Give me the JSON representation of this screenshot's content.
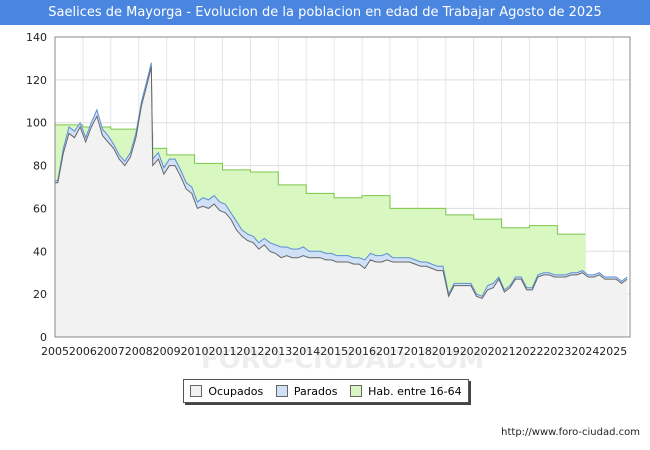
{
  "title": "Saelices de Mayorga - Evolucion de la poblacion en edad de Trabajar Agosto de 2025",
  "source": "http://www.foro-ciudad.com",
  "watermark": "FORO-CIUDAD.COM",
  "colors": {
    "title_bg": "#4a86e0",
    "ocupados_fill": "#f2f2f2",
    "ocupados_line": "#666666",
    "parados_fill": "#cfe0f7",
    "parados_line": "#5b8ed6",
    "hab_fill": "#d9f7c0",
    "hab_line": "#7cc64a"
  },
  "chart_data": {
    "type": "area",
    "xlim": [
      2005,
      2025.6
    ],
    "ylim": [
      0,
      140
    ],
    "x_ticks": [
      "2005",
      "2006",
      "2007",
      "2008",
      "2009",
      "2010",
      "2011",
      "2012",
      "2013",
      "2014",
      "2015",
      "2016",
      "2017",
      "2018",
      "2019",
      "2020",
      "2021",
      "2022",
      "2023",
      "2024",
      "2025"
    ],
    "y_ticks": [
      0,
      20,
      40,
      60,
      80,
      100,
      120,
      140
    ],
    "grid": true,
    "legend": [
      "Ocupados",
      "Parados",
      "Hab. entre 16-64"
    ],
    "series": [
      {
        "name": "Hab. entre 16-64",
        "points": [
          [
            2005.0,
            99
          ],
          [
            2006.0,
            99
          ],
          [
            2006.0,
            98
          ],
          [
            2007.0,
            98
          ],
          [
            2007.0,
            97
          ],
          [
            2008.0,
            97
          ],
          [
            2008.0,
            95
          ],
          [
            2008.5,
            95
          ],
          [
            2008.5,
            88
          ],
          [
            2009.0,
            88
          ],
          [
            2009.0,
            85
          ],
          [
            2010.0,
            85
          ],
          [
            2010.0,
            81
          ],
          [
            2011.0,
            81
          ],
          [
            2011.0,
            78
          ],
          [
            2012.0,
            78
          ],
          [
            2012.0,
            77
          ],
          [
            2013.0,
            77
          ],
          [
            2013.0,
            71
          ],
          [
            2014.0,
            71
          ],
          [
            2014.0,
            67
          ],
          [
            2015.0,
            67
          ],
          [
            2015.0,
            65
          ],
          [
            2016.0,
            65
          ],
          [
            2016.0,
            66
          ],
          [
            2017.0,
            66
          ],
          [
            2017.0,
            60
          ],
          [
            2018.0,
            60
          ],
          [
            2018.0,
            60
          ],
          [
            2019.0,
            60
          ],
          [
            2019.0,
            57
          ],
          [
            2020.0,
            57
          ],
          [
            2020.0,
            55
          ],
          [
            2021.0,
            55
          ],
          [
            2021.0,
            51
          ],
          [
            2022.0,
            51
          ],
          [
            2022.0,
            52
          ],
          [
            2023.0,
            52
          ],
          [
            2023.0,
            48
          ],
          [
            2024.0,
            48
          ]
        ]
      },
      {
        "name": "Parados",
        "points": [
          [
            2005.0,
            73
          ],
          [
            2005.1,
            73
          ],
          [
            2005.3,
            88
          ],
          [
            2005.5,
            98
          ],
          [
            2005.7,
            96
          ],
          [
            2005.9,
            100
          ],
          [
            2006.1,
            93
          ],
          [
            2006.3,
            100
          ],
          [
            2006.5,
            106
          ],
          [
            2006.7,
            97
          ],
          [
            2006.9,
            94
          ],
          [
            2007.1,
            90
          ],
          [
            2007.3,
            85
          ],
          [
            2007.5,
            82
          ],
          [
            2007.7,
            86
          ],
          [
            2007.9,
            95
          ],
          [
            2008.1,
            110
          ],
          [
            2008.3,
            120
          ],
          [
            2008.45,
            128
          ],
          [
            2008.5,
            83
          ],
          [
            2008.7,
            86
          ],
          [
            2008.9,
            79
          ],
          [
            2009.1,
            83
          ],
          [
            2009.3,
            83
          ],
          [
            2009.5,
            78
          ],
          [
            2009.7,
            72
          ],
          [
            2009.9,
            70
          ],
          [
            2010.1,
            63
          ],
          [
            2010.3,
            65
          ],
          [
            2010.5,
            64
          ],
          [
            2010.7,
            66
          ],
          [
            2010.9,
            63
          ],
          [
            2011.1,
            62
          ],
          [
            2011.3,
            58
          ],
          [
            2011.5,
            54
          ],
          [
            2011.7,
            50
          ],
          [
            2011.9,
            48
          ],
          [
            2012.1,
            47
          ],
          [
            2012.3,
            44
          ],
          [
            2012.5,
            46
          ],
          [
            2012.7,
            44
          ],
          [
            2012.9,
            43
          ],
          [
            2013.1,
            42
          ],
          [
            2013.3,
            42
          ],
          [
            2013.5,
            41
          ],
          [
            2013.7,
            41
          ],
          [
            2013.9,
            42
          ],
          [
            2014.1,
            40
          ],
          [
            2014.3,
            40
          ],
          [
            2014.5,
            40
          ],
          [
            2014.7,
            39
          ],
          [
            2014.9,
            39
          ],
          [
            2015.1,
            38
          ],
          [
            2015.3,
            38
          ],
          [
            2015.5,
            38
          ],
          [
            2015.7,
            37
          ],
          [
            2015.9,
            37
          ],
          [
            2016.1,
            36
          ],
          [
            2016.3,
            39
          ],
          [
            2016.5,
            38
          ],
          [
            2016.7,
            38
          ],
          [
            2016.9,
            39
          ],
          [
            2017.1,
            37
          ],
          [
            2017.3,
            37
          ],
          [
            2017.5,
            37
          ],
          [
            2017.7,
            37
          ],
          [
            2017.9,
            36
          ],
          [
            2018.1,
            35
          ],
          [
            2018.3,
            35
          ],
          [
            2018.5,
            34
          ],
          [
            2018.7,
            33
          ],
          [
            2018.9,
            33
          ],
          [
            2019.1,
            20
          ],
          [
            2019.3,
            25
          ],
          [
            2019.5,
            25
          ],
          [
            2019.7,
            25
          ],
          [
            2019.9,
            25
          ],
          [
            2020.1,
            20
          ],
          [
            2020.3,
            19
          ],
          [
            2020.5,
            24
          ],
          [
            2020.7,
            25
          ],
          [
            2020.9,
            28
          ],
          [
            2021.1,
            22
          ],
          [
            2021.3,
            24
          ],
          [
            2021.5,
            28
          ],
          [
            2021.7,
            28
          ],
          [
            2021.9,
            23
          ],
          [
            2022.1,
            23
          ],
          [
            2022.3,
            29
          ],
          [
            2022.5,
            30
          ],
          [
            2022.7,
            30
          ],
          [
            2022.9,
            29
          ],
          [
            2023.1,
            29
          ],
          [
            2023.3,
            29
          ],
          [
            2023.5,
            30
          ],
          [
            2023.7,
            30
          ],
          [
            2023.9,
            31
          ],
          [
            2024.1,
            29
          ],
          [
            2024.3,
            29
          ],
          [
            2024.5,
            30
          ],
          [
            2024.7,
            28
          ],
          [
            2024.9,
            28
          ],
          [
            2025.1,
            28
          ],
          [
            2025.3,
            26
          ],
          [
            2025.5,
            28
          ]
        ]
      },
      {
        "name": "Ocupados",
        "points": [
          [
            2005.0,
            72
          ],
          [
            2005.1,
            72
          ],
          [
            2005.3,
            86
          ],
          [
            2005.5,
            95
          ],
          [
            2005.7,
            93
          ],
          [
            2005.9,
            98
          ],
          [
            2006.1,
            91
          ],
          [
            2006.3,
            98
          ],
          [
            2006.5,
            103
          ],
          [
            2006.7,
            94
          ],
          [
            2006.9,
            91
          ],
          [
            2007.1,
            88
          ],
          [
            2007.3,
            83
          ],
          [
            2007.5,
            80
          ],
          [
            2007.7,
            84
          ],
          [
            2007.9,
            93
          ],
          [
            2008.1,
            108
          ],
          [
            2008.3,
            118
          ],
          [
            2008.45,
            126
          ],
          [
            2008.5,
            80
          ],
          [
            2008.7,
            83
          ],
          [
            2008.9,
            76
          ],
          [
            2009.1,
            80
          ],
          [
            2009.3,
            80
          ],
          [
            2009.5,
            75
          ],
          [
            2009.7,
            69
          ],
          [
            2009.9,
            67
          ],
          [
            2010.1,
            60
          ],
          [
            2010.3,
            61
          ],
          [
            2010.5,
            60
          ],
          [
            2010.7,
            62
          ],
          [
            2010.9,
            59
          ],
          [
            2011.1,
            58
          ],
          [
            2011.3,
            55
          ],
          [
            2011.5,
            50
          ],
          [
            2011.7,
            47
          ],
          [
            2011.9,
            45
          ],
          [
            2012.1,
            44
          ],
          [
            2012.3,
            41
          ],
          [
            2012.5,
            43
          ],
          [
            2012.7,
            40
          ],
          [
            2012.9,
            39
          ],
          [
            2013.1,
            37
          ],
          [
            2013.3,
            38
          ],
          [
            2013.5,
            37
          ],
          [
            2013.7,
            37
          ],
          [
            2013.9,
            38
          ],
          [
            2014.1,
            37
          ],
          [
            2014.3,
            37
          ],
          [
            2014.5,
            37
          ],
          [
            2014.7,
            36
          ],
          [
            2014.9,
            36
          ],
          [
            2015.1,
            35
          ],
          [
            2015.3,
            35
          ],
          [
            2015.5,
            35
          ],
          [
            2015.7,
            34
          ],
          [
            2015.9,
            34
          ],
          [
            2016.1,
            32
          ],
          [
            2016.3,
            36
          ],
          [
            2016.5,
            35
          ],
          [
            2016.7,
            35
          ],
          [
            2016.9,
            36
          ],
          [
            2017.1,
            35
          ],
          [
            2017.3,
            35
          ],
          [
            2017.5,
            35
          ],
          [
            2017.7,
            35
          ],
          [
            2017.9,
            34
          ],
          [
            2018.1,
            33
          ],
          [
            2018.3,
            33
          ],
          [
            2018.5,
            32
          ],
          [
            2018.7,
            31
          ],
          [
            2018.9,
            31
          ],
          [
            2019.1,
            19
          ],
          [
            2019.3,
            24
          ],
          [
            2019.5,
            24
          ],
          [
            2019.7,
            24
          ],
          [
            2019.9,
            24
          ],
          [
            2020.1,
            19
          ],
          [
            2020.3,
            18
          ],
          [
            2020.5,
            22
          ],
          [
            2020.7,
            23
          ],
          [
            2020.9,
            27
          ],
          [
            2021.1,
            21
          ],
          [
            2021.3,
            23
          ],
          [
            2021.5,
            27
          ],
          [
            2021.7,
            27
          ],
          [
            2021.9,
            22
          ],
          [
            2022.1,
            22
          ],
          [
            2022.3,
            28
          ],
          [
            2022.5,
            29
          ],
          [
            2022.7,
            29
          ],
          [
            2022.9,
            28
          ],
          [
            2023.1,
            28
          ],
          [
            2023.3,
            28
          ],
          [
            2023.5,
            29
          ],
          [
            2023.7,
            29
          ],
          [
            2023.9,
            30
          ],
          [
            2024.1,
            28
          ],
          [
            2024.3,
            28
          ],
          [
            2024.5,
            29
          ],
          [
            2024.7,
            27
          ],
          [
            2024.9,
            27
          ],
          [
            2025.1,
            27
          ],
          [
            2025.3,
            25
          ],
          [
            2025.5,
            27
          ]
        ]
      }
    ]
  }
}
